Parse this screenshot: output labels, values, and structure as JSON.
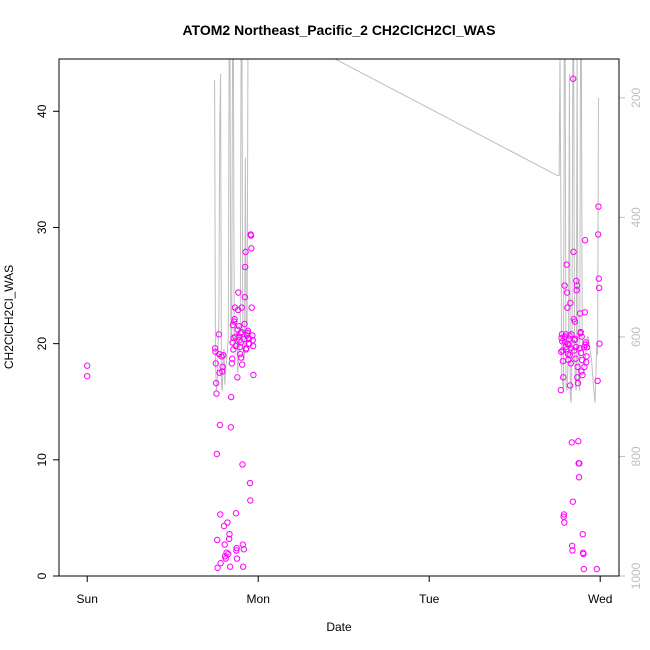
{
  "chart_data": {
    "type": "scatter",
    "title": "ATOM2 Northeast_Pacific_2 CH2ClCH2Cl_WAS",
    "xlabel": "Date",
    "ylabel": "CH2ClCH2Cl_WAS",
    "x_ticks": [
      "Sun",
      "Mon",
      "Tue",
      "Wed"
    ],
    "x_tick_positions_days": [
      0,
      1,
      2,
      3
    ],
    "xlim_days": [
      -0.165,
      3.11
    ],
    "ylim": [
      0,
      44.5
    ],
    "y_ticks": [
      0,
      10,
      20,
      30,
      40
    ],
    "y2_ticks": [
      200,
      400,
      600,
      800,
      1000
    ],
    "y2_lim": [
      1000,
      135
    ],
    "y2_reversed": true,
    "y2_color": "#bebebe",
    "grid": false,
    "series": [
      {
        "role": "points",
        "color": "#ff00ff",
        "marker": "open-circle",
        "points": [
          [
            0.0,
            18.1
          ],
          [
            0.0,
            17.2
          ],
          [
            0.748,
            19.6
          ],
          [
            0.75,
            19.3
          ],
          [
            0.752,
            18.3
          ],
          [
            0.754,
            16.6
          ],
          [
            0.756,
            15.7
          ],
          [
            0.758,
            10.5
          ],
          [
            0.76,
            3.1
          ],
          [
            0.762,
            0.7
          ],
          [
            0.77,
            20.8
          ],
          [
            0.772,
            19.1
          ],
          [
            0.774,
            17.5
          ],
          [
            0.776,
            13.0
          ],
          [
            0.778,
            5.3
          ],
          [
            0.78,
            1.1
          ],
          [
            0.786,
            18.9
          ],
          [
            0.79,
            17.6
          ],
          [
            0.792,
            18.0
          ],
          [
            0.796,
            19.0
          ],
          [
            0.8,
            4.3
          ],
          [
            0.804,
            2.7
          ],
          [
            0.806,
            1.7
          ],
          [
            0.81,
            1.5
          ],
          [
            0.815,
            2.0
          ],
          [
            0.82,
            4.6
          ],
          [
            0.825,
            1.9
          ],
          [
            0.83,
            3.2
          ],
          [
            0.832,
            3.6
          ],
          [
            0.836,
            0.8
          ],
          [
            0.84,
            12.8
          ],
          [
            0.842,
            15.4
          ],
          [
            0.846,
            18.3
          ],
          [
            0.848,
            18.7
          ],
          [
            0.85,
            20.1
          ],
          [
            0.852,
            21.6
          ],
          [
            0.854,
            19.5
          ],
          [
            0.856,
            20.5
          ],
          [
            0.86,
            21.9
          ],
          [
            0.862,
            22.1
          ],
          [
            0.864,
            23.1
          ],
          [
            0.866,
            20.6
          ],
          [
            0.868,
            19.8
          ],
          [
            0.87,
            5.4
          ],
          [
            0.872,
            2.2
          ],
          [
            0.874,
            2.4
          ],
          [
            0.876,
            1.5
          ],
          [
            0.878,
            17.1
          ],
          [
            0.88,
            21.2
          ],
          [
            0.882,
            22.9
          ],
          [
            0.884,
            24.4
          ],
          [
            0.886,
            20.6
          ],
          [
            0.888,
            21.5
          ],
          [
            0.89,
            20.3
          ],
          [
            0.892,
            19.7
          ],
          [
            0.894,
            19.1
          ],
          [
            0.896,
            20.9
          ],
          [
            0.898,
            20.1
          ],
          [
            0.9,
            18.8
          ],
          [
            0.902,
            21.0
          ],
          [
            0.904,
            23.1
          ],
          [
            0.906,
            18.2
          ],
          [
            0.908,
            9.6
          ],
          [
            0.91,
            2.7
          ],
          [
            0.912,
            0.8
          ],
          [
            0.916,
            2.3
          ],
          [
            0.918,
            20.4
          ],
          [
            0.92,
            21.7
          ],
          [
            0.922,
            24.0
          ],
          [
            0.924,
            26.6
          ],
          [
            0.926,
            27.9
          ],
          [
            0.928,
            19.5
          ],
          [
            0.93,
            19.6
          ],
          [
            0.934,
            20.7
          ],
          [
            0.938,
            20.9
          ],
          [
            0.94,
            21.1
          ],
          [
            0.942,
            20.5
          ],
          [
            0.944,
            20.0
          ],
          [
            0.946,
            20.4
          ],
          [
            0.948,
            20.0
          ],
          [
            0.952,
            8.0
          ],
          [
            0.954,
            6.5
          ],
          [
            0.956,
            29.4
          ],
          [
            0.958,
            29.3
          ],
          [
            0.96,
            28.2
          ],
          [
            0.962,
            23.1
          ],
          [
            0.966,
            20.7
          ],
          [
            0.968,
            20.3
          ],
          [
            0.97,
            19.8
          ],
          [
            0.972,
            17.3
          ],
          [
            2.77,
            16.0
          ],
          [
            2.772,
            19.3
          ],
          [
            2.774,
            20.5
          ],
          [
            2.776,
            20.8
          ],
          [
            2.778,
            20.2
          ],
          [
            2.78,
            19.4
          ],
          [
            2.782,
            18.5
          ],
          [
            2.784,
            17.1
          ],
          [
            2.786,
            5.1
          ],
          [
            2.788,
            5.3
          ],
          [
            2.79,
            4.6
          ],
          [
            2.792,
            25.0
          ],
          [
            2.794,
            20.6
          ],
          [
            2.796,
            20.1
          ],
          [
            2.798,
            19.7
          ],
          [
            2.8,
            20.8
          ],
          [
            2.802,
            19.5
          ],
          [
            2.804,
            26.8
          ],
          [
            2.806,
            24.4
          ],
          [
            2.808,
            23.1
          ],
          [
            2.81,
            20.0
          ],
          [
            2.812,
            19.1
          ],
          [
            2.814,
            18.6
          ],
          [
            2.816,
            19.9
          ],
          [
            2.818,
            20.4
          ],
          [
            2.82,
            20.7
          ],
          [
            2.822,
            19.0
          ],
          [
            2.824,
            16.4
          ],
          [
            2.826,
            23.5
          ],
          [
            2.828,
            18.3
          ],
          [
            2.83,
            19.6
          ],
          [
            2.832,
            20.8
          ],
          [
            2.834,
            11.5
          ],
          [
            2.836,
            2.6
          ],
          [
            2.838,
            2.2
          ],
          [
            2.84,
            6.4
          ],
          [
            2.842,
            42.8
          ],
          [
            2.844,
            27.9
          ],
          [
            2.846,
            22.1
          ],
          [
            2.848,
            19.4
          ],
          [
            2.85,
            20.3
          ],
          [
            2.852,
            21.9
          ],
          [
            2.854,
            20.4
          ],
          [
            2.856,
            18.7
          ],
          [
            2.858,
            19.7
          ],
          [
            2.86,
            25.4
          ],
          [
            2.862,
            24.6
          ],
          [
            2.864,
            25.0
          ],
          [
            2.866,
            17.1
          ],
          [
            2.868,
            18.0
          ],
          [
            2.87,
            16.6
          ],
          [
            2.872,
            11.6
          ],
          [
            2.874,
            9.7
          ],
          [
            2.876,
            8.5
          ],
          [
            2.878,
            9.7
          ],
          [
            2.88,
            19.6
          ],
          [
            2.882,
            22.6
          ],
          [
            2.884,
            20.9
          ],
          [
            2.886,
            21.0
          ],
          [
            2.888,
            19.2
          ],
          [
            2.89,
            17.6
          ],
          [
            2.892,
            20.6
          ],
          [
            2.894,
            18.6
          ],
          [
            2.896,
            17.3
          ],
          [
            2.898,
            3.6
          ],
          [
            2.9,
            2.0
          ],
          [
            2.902,
            1.9
          ],
          [
            2.904,
            0.6
          ],
          [
            2.906,
            19.7
          ],
          [
            2.908,
            18.0
          ],
          [
            2.91,
            22.7
          ],
          [
            2.912,
            28.9
          ],
          [
            2.914,
            19.9
          ],
          [
            2.916,
            20.1
          ],
          [
            2.918,
            18.4
          ],
          [
            2.92,
            18.9
          ],
          [
            2.922,
            19.7
          ],
          [
            2.98,
            0.6
          ],
          [
            2.985,
            16.8
          ],
          [
            2.988,
            29.4
          ],
          [
            2.99,
            31.8
          ],
          [
            2.992,
            25.6
          ],
          [
            2.994,
            24.8
          ],
          [
            2.996,
            20.0
          ]
        ]
      },
      {
        "role": "altitude-line",
        "axis": "right",
        "color": "#bebebe",
        "points": [
          [
            0.745,
            170
          ],
          [
            0.75,
            640
          ],
          [
            0.755,
            690
          ],
          [
            0.76,
            680
          ],
          [
            0.765,
            620
          ],
          [
            0.77,
            570
          ],
          [
            0.775,
            250
          ],
          [
            0.78,
            160
          ],
          [
            0.785,
            680
          ],
          [
            0.79,
            690
          ],
          [
            0.795,
            640
          ],
          [
            0.8,
            620
          ],
          [
            0.805,
            680
          ],
          [
            0.81,
            650
          ],
          [
            0.815,
            640
          ],
          [
            0.82,
            620
          ],
          [
            0.825,
            600
          ],
          [
            0.83,
            120
          ],
          [
            0.835,
            120
          ],
          [
            0.84,
            610
          ],
          [
            0.845,
            600
          ],
          [
            0.85,
            120
          ],
          [
            0.855,
            120
          ],
          [
            0.86,
            620
          ],
          [
            0.865,
            600
          ],
          [
            0.87,
            610
          ],
          [
            0.875,
            590
          ],
          [
            0.88,
            660
          ],
          [
            0.885,
            640
          ],
          [
            0.89,
            610
          ],
          [
            0.895,
            600
          ],
          [
            0.9,
            120
          ],
          [
            0.905,
            120
          ],
          [
            0.91,
            610
          ],
          [
            0.915,
            640
          ],
          [
            0.92,
            630
          ],
          [
            0.925,
            300
          ],
          [
            0.93,
            600
          ],
          [
            0.935,
            610
          ],
          [
            0.94,
            120
          ],
          [
            0.945,
            120
          ],
          [
            0.95,
            120
          ],
          [
            1.35,
            120
          ],
          [
            2.75,
            330
          ],
          [
            2.76,
            330
          ],
          [
            2.765,
            120
          ],
          [
            2.775,
            660
          ],
          [
            2.785,
            690
          ],
          [
            2.79,
            120
          ],
          [
            2.795,
            120
          ],
          [
            2.8,
            680
          ],
          [
            2.805,
            690
          ],
          [
            2.81,
            660
          ],
          [
            2.815,
            620
          ],
          [
            2.82,
            160
          ],
          [
            2.825,
            700
          ],
          [
            2.83,
            710
          ],
          [
            2.835,
            630
          ],
          [
            2.84,
            120
          ],
          [
            2.845,
            120
          ],
          [
            2.85,
            620
          ],
          [
            2.855,
            680
          ],
          [
            2.86,
            690
          ],
          [
            2.865,
            120
          ],
          [
            2.87,
            640
          ],
          [
            2.875,
            680
          ],
          [
            2.88,
            690
          ],
          [
            2.885,
            120
          ],
          [
            2.89,
            120
          ],
          [
            2.895,
            600
          ],
          [
            2.9,
            620
          ],
          [
            2.905,
            640
          ],
          [
            2.91,
            650
          ],
          [
            2.915,
            630
          ],
          [
            2.92,
            610
          ],
          [
            2.925,
            600
          ],
          [
            2.93,
            600
          ],
          [
            2.94,
            620
          ],
          [
            2.95,
            640
          ],
          [
            2.96,
            680
          ],
          [
            2.97,
            710
          ],
          [
            2.98,
            610
          ],
          [
            2.985,
            630
          ],
          [
            2.99,
            200
          ]
        ]
      }
    ]
  }
}
